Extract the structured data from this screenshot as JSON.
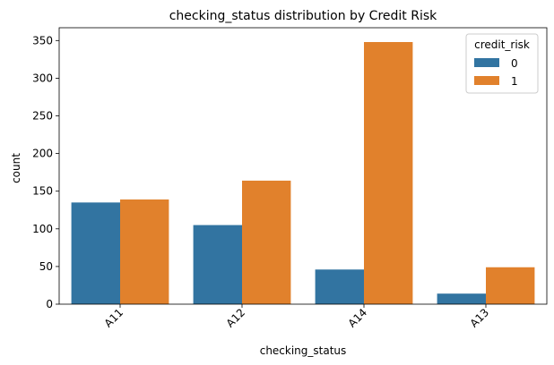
{
  "chart_data": {
    "type": "bar",
    "title": "checking_status distribution by Credit Risk",
    "xlabel": "checking_status",
    "ylabel": "count",
    "categories": [
      "A11",
      "A12",
      "A14",
      "A13"
    ],
    "series": [
      {
        "name": "0",
        "values": [
          135,
          105,
          46,
          14
        ],
        "color": "#3274a1"
      },
      {
        "name": "1",
        "values": [
          139,
          164,
          348,
          49
        ],
        "color": "#e1812c"
      }
    ],
    "ylim": [
      0,
      367
    ],
    "yticks": [
      0,
      50,
      100,
      150,
      200,
      250,
      300,
      350
    ],
    "legend": {
      "title": "credit_risk",
      "placement": "top-right"
    },
    "grid": false
  }
}
